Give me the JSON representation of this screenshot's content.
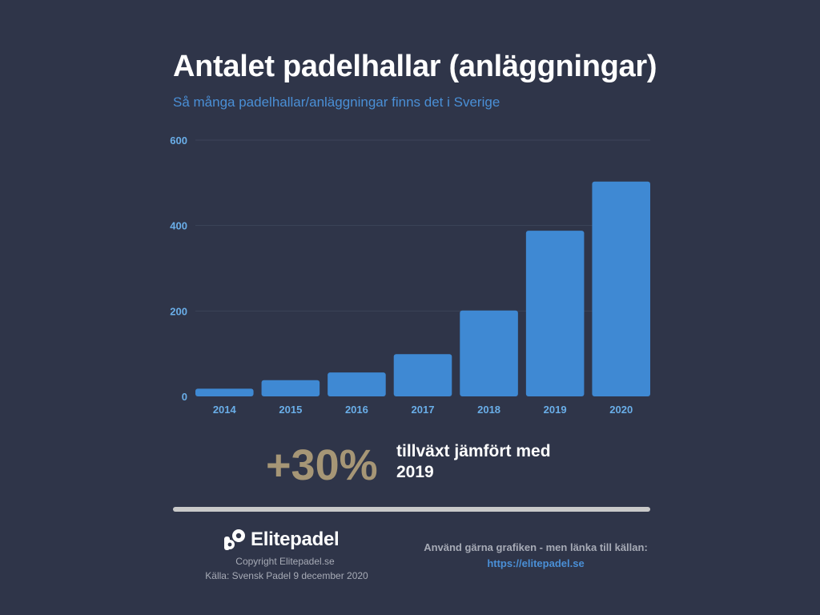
{
  "header": {
    "title": "Antalet padelhallar (anläggningar)",
    "subtitle": "Så många padelhallar/anläggningar finns det i Sverige"
  },
  "chart_data": {
    "type": "bar",
    "title": "Antalet padelhallar (anläggningar)",
    "subtitle": "Så många padelhallar/anläggningar finns det i Sverige",
    "xlabel": "",
    "ylabel": "",
    "categories": [
      "2014",
      "2015",
      "2016",
      "2017",
      "2018",
      "2019",
      "2020"
    ],
    "values": [
      18,
      38,
      56,
      99,
      201,
      388,
      503
    ],
    "ylim": [
      0,
      600
    ],
    "yticks": [
      0,
      200,
      400,
      600
    ],
    "grid": true,
    "legend": "none",
    "bar_color": "#3f89d3",
    "grid_color": "#3d4459",
    "tick_color": "#6aaee8"
  },
  "highlight": {
    "value": "+30%",
    "text": "tillväxt jämfört med 2019",
    "value_color": "#a69676"
  },
  "footer": {
    "brand": "Elitepadel",
    "copyright": "Copyright Elitepadel.se",
    "source": "Källa: Svensk Padel 9 december 2020",
    "cta": "Använd gärna grafiken - men länka till källan:",
    "link": "https://elitepadel.se",
    "logo_icon": "elitepadel-logo-icon"
  },
  "colors": {
    "background": "#2f3549",
    "accent": "#4a8fd6",
    "text": "#ffffff",
    "muted": "#a7abb6"
  }
}
